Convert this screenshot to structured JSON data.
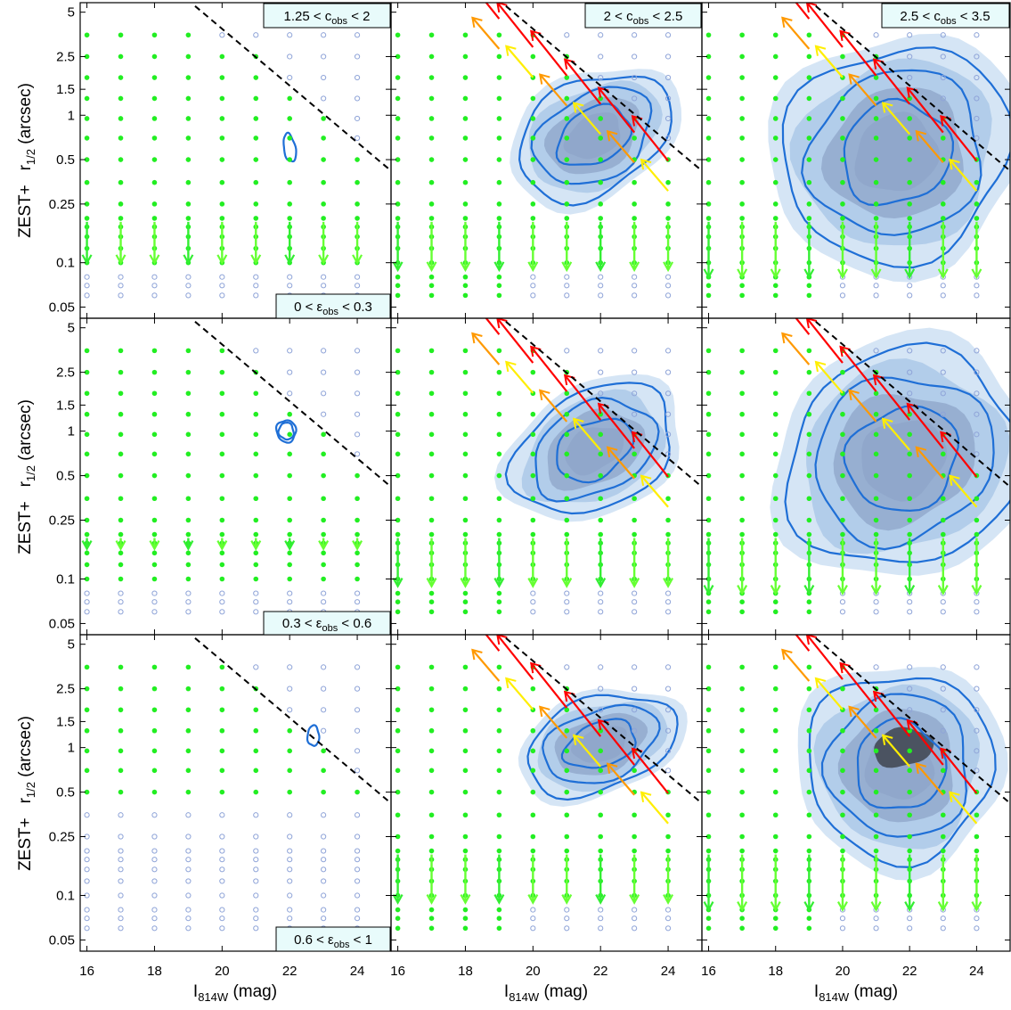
{
  "chart_data": {
    "type": "scatter",
    "layout": "3x3 panel grid",
    "x_axis": {
      "label": "I",
      "label_sub": "814W",
      "label_suffix": " (mag)",
      "range": [
        15.8,
        25.0
      ],
      "ticks": [
        16,
        18,
        20,
        22,
        24
      ],
      "tick_labels": [
        "16",
        "18",
        "20",
        "22",
        "24"
      ]
    },
    "y_axis": {
      "label_prefix": "ZEST+   r",
      "label_sub": "1/2",
      "label_suffix": " (arcsec)",
      "scale": "log",
      "range": [
        0.042,
        5.8
      ],
      "ticks": [
        0.05,
        0.1,
        0.25,
        0.5,
        1,
        1.5,
        2.5,
        5
      ],
      "tick_labels": [
        "0.05",
        "0.1",
        "0.25",
        "0.5",
        "1",
        "1.5",
        "2.5",
        "5"
      ]
    },
    "grid_points": {
      "mags": [
        16,
        17,
        18,
        19,
        20,
        21,
        22,
        23,
        24
      ],
      "radii": [
        0.06,
        0.07,
        0.08,
        0.1,
        0.125,
        0.15,
        0.175,
        0.2,
        0.25,
        0.35,
        0.5,
        0.7,
        0.95,
        1.3,
        1.8,
        2.5,
        3.5
      ]
    },
    "column_labels": [
      {
        "pre": "1.25 <  c",
        "sub": "obs",
        "post": " < 2"
      },
      {
        "pre": "2 <  c",
        "sub": "obs",
        "post": " < 2.5"
      },
      {
        "pre": "2.5 <  c",
        "sub": "obs",
        "post": " < 3.5"
      }
    ],
    "row_labels": [
      {
        "pre": "0 < ε",
        "sub": "obs",
        "post": " < 0.3"
      },
      {
        "pre": "0.3 < ε",
        "sub": "obs",
        "post": " < 0.6"
      },
      {
        "pre": "0.6 < ε",
        "sub": "obs",
        "post": " < 1"
      }
    ],
    "legend_placement": "column labels top-right of top row; row labels bottom-right of first column",
    "surface_brightness_limit_line": {
      "style": "dashed",
      "color": "#000000",
      "points": [
        [
          19.2,
          5.5
        ],
        [
          25.0,
          0.42
        ]
      ]
    },
    "arrow_color_scale": [
      "#33ee33",
      "#66ff33",
      "#ccff33",
      "#ffee00",
      "#ff9900",
      "#ff0000"
    ],
    "point_colors": {
      "measured": "#22ee22",
      "not_measured": "#8fa4d8"
    },
    "contour_colors": [
      "#1f6fd6",
      "#c7dcf2",
      "#a6c4e6",
      "#8ea4c8",
      "#444a55"
    ],
    "contours": [
      {
        "row": 0,
        "col": 0,
        "levels": 1,
        "center": [
          22.0,
          0.6
        ],
        "semi": [
          0.3,
          0.17
        ],
        "angle": 10
      },
      {
        "row": 0,
        "col": 1,
        "levels": 4,
        "center": [
          21.8,
          0.72
        ],
        "semi": [
          2.1,
          0.33
        ],
        "angle": 30
      },
      {
        "row": 0,
        "col": 2,
        "levels": 5,
        "center": [
          21.6,
          0.55
        ],
        "semi": [
          3.0,
          0.62
        ],
        "angle": 28
      },
      {
        "row": 1,
        "col": 0,
        "levels": 2,
        "center": [
          21.9,
          1.0
        ],
        "semi": [
          0.5,
          0.13
        ],
        "angle": 10
      },
      {
        "row": 1,
        "col": 1,
        "levels": 4,
        "center": [
          21.8,
          0.75
        ],
        "semi": [
          2.2,
          0.34
        ],
        "angle": 28
      },
      {
        "row": 1,
        "col": 2,
        "levels": 5,
        "center": [
          21.8,
          0.65
        ],
        "semi": [
          3.1,
          0.62
        ],
        "angle": 28
      },
      {
        "row": 2,
        "col": 0,
        "levels": 1,
        "center": [
          22.7,
          1.2
        ],
        "semi": [
          0.3,
          0.12
        ],
        "angle": 0
      },
      {
        "row": 2,
        "col": 1,
        "levels": 3,
        "center": [
          22.0,
          1.05
        ],
        "semi": [
          2.0,
          0.27
        ],
        "angle": 20
      },
      {
        "row": 2,
        "col": 2,
        "levels": 5,
        "center": [
          21.7,
          0.75
        ],
        "semi": [
          2.4,
          0.55
        ],
        "angle": 25
      }
    ]
  }
}
